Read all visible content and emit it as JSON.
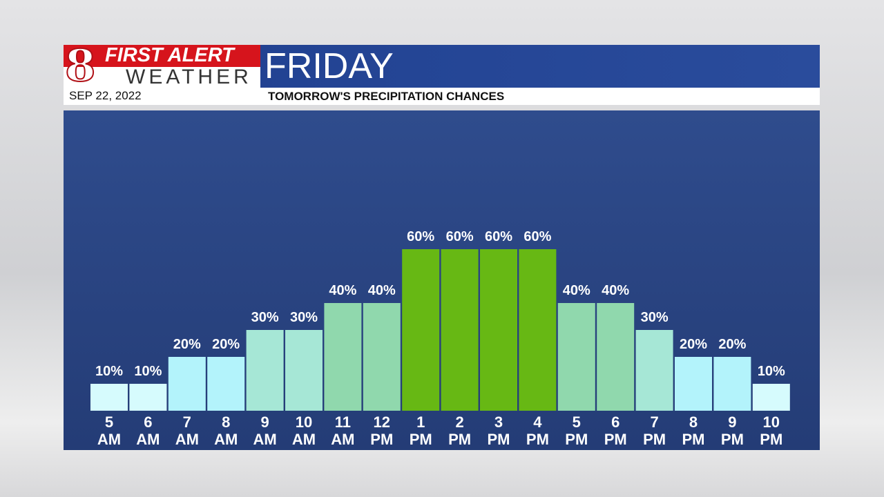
{
  "header": {
    "logo_number": "8",
    "brand_top": "FIRST ALERT",
    "brand_bottom": "WEATHER",
    "date": "SEP 22, 2022"
  },
  "chart_data": {
    "type": "bar",
    "title": "FRIDAY",
    "subtitle": "TOMORROW'S PRECIPITATION CHANCES",
    "categories": [
      "5 AM",
      "6 AM",
      "7 AM",
      "8 AM",
      "9 AM",
      "10 AM",
      "11 AM",
      "12 PM",
      "1 PM",
      "2 PM",
      "3 PM",
      "4 PM",
      "5 PM",
      "6 PM",
      "7 PM",
      "8 PM",
      "9 PM",
      "10 PM"
    ],
    "values": [
      10,
      10,
      20,
      20,
      30,
      30,
      40,
      40,
      60,
      60,
      60,
      60,
      40,
      40,
      30,
      20,
      20,
      10
    ],
    "value_labels": [
      "10%",
      "10%",
      "20%",
      "20%",
      "30%",
      "30%",
      "40%",
      "40%",
      "60%",
      "60%",
      "60%",
      "60%",
      "40%",
      "40%",
      "30%",
      "20%",
      "20%",
      "10%"
    ],
    "colors": [
      "#d6fbfd",
      "#d6fbfd",
      "#b3f3fb",
      "#b3f3fb",
      "#a6e7d6",
      "#a6e7d6",
      "#90d8ad",
      "#90d8ad",
      "#67b814",
      "#67b814",
      "#67b814",
      "#67b814",
      "#90d8ad",
      "#90d8ad",
      "#a6e7d6",
      "#b3f3fb",
      "#b3f3fb",
      "#d6fbfd"
    ]
  }
}
